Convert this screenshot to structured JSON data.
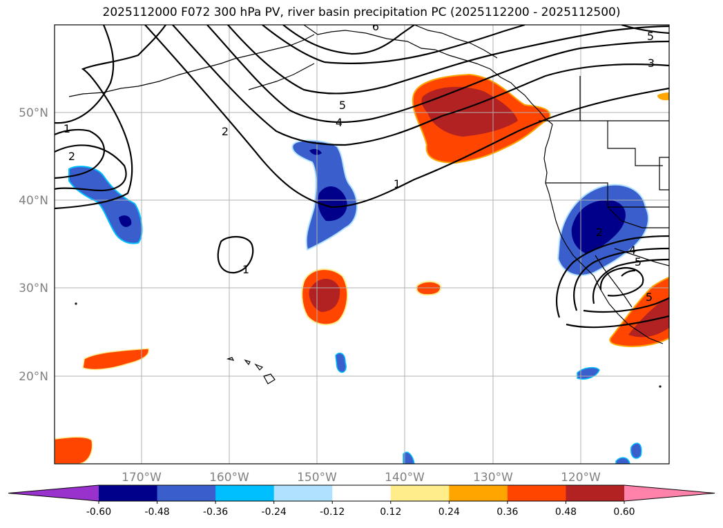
{
  "title": "2025112000 F072 300 hPa PV, river basin precipitation PC (2025112200 - 2025112500)",
  "map": {
    "lon_ticks": [
      "170°W",
      "160°W",
      "150°W",
      "140°W",
      "130°W",
      "120°W"
    ],
    "lat_ticks": [
      "50°N",
      "40°N",
      "30°N",
      "20°N"
    ],
    "grid": true,
    "tick_color": "#808080"
  },
  "pv_contour_labels": [
    "1",
    "2",
    "5",
    "4",
    "2",
    "1",
    "1",
    "5",
    "3",
    "5",
    "4",
    "2",
    "5",
    "6"
  ],
  "colorbar": {
    "tick_labels": [
      "-0.60",
      "-0.48",
      "-0.36",
      "-0.24",
      "-0.12",
      "0.12",
      "0.24",
      "0.36",
      "0.48",
      "0.60"
    ],
    "colors": [
      "#9932cc",
      "#00008b",
      "#3a5fcd",
      "#00bfff",
      "#b0e2ff",
      "#ffffff",
      "#ffec8b",
      "#ffa500",
      "#ff4500",
      "#b22222",
      "#ff82ab"
    ]
  }
}
